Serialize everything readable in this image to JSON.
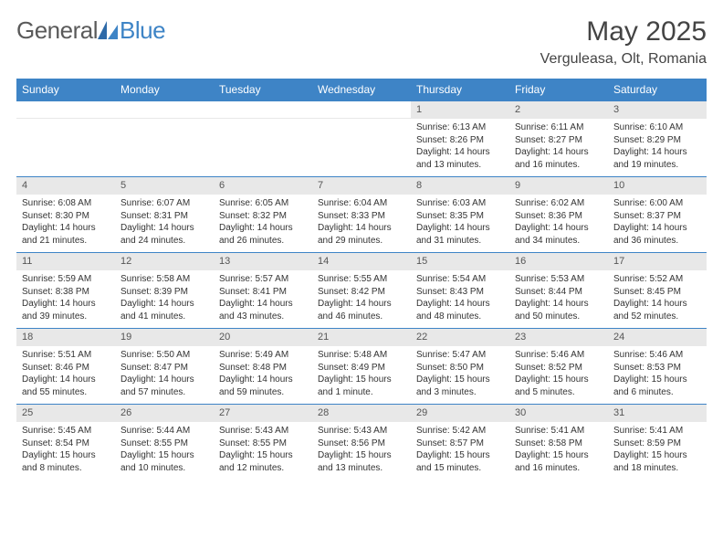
{
  "brand": {
    "part1": "General",
    "part2": "Blue",
    "accent": "#3e84c6",
    "gray": "#5a5a5a"
  },
  "header": {
    "month": "May 2025",
    "location": "Verguleasa, Olt, Romania"
  },
  "colors": {
    "header_bg": "#3e84c6",
    "header_fg": "#ffffff",
    "daynum_bg": "#e8e8e8",
    "rule": "#3e84c6",
    "text": "#333333"
  },
  "weekdays": [
    "Sunday",
    "Monday",
    "Tuesday",
    "Wednesday",
    "Thursday",
    "Friday",
    "Saturday"
  ],
  "weeks": [
    [
      {
        "empty": true
      },
      {
        "empty": true
      },
      {
        "empty": true
      },
      {
        "empty": true
      },
      {
        "n": "1",
        "sunrise": "6:13 AM",
        "sunset": "8:26 PM",
        "day_h": 14,
        "day_m": 13
      },
      {
        "n": "2",
        "sunrise": "6:11 AM",
        "sunset": "8:27 PM",
        "day_h": 14,
        "day_m": 16
      },
      {
        "n": "3",
        "sunrise": "6:10 AM",
        "sunset": "8:29 PM",
        "day_h": 14,
        "day_m": 19
      }
    ],
    [
      {
        "n": "4",
        "sunrise": "6:08 AM",
        "sunset": "8:30 PM",
        "day_h": 14,
        "day_m": 21
      },
      {
        "n": "5",
        "sunrise": "6:07 AM",
        "sunset": "8:31 PM",
        "day_h": 14,
        "day_m": 24
      },
      {
        "n": "6",
        "sunrise": "6:05 AM",
        "sunset": "8:32 PM",
        "day_h": 14,
        "day_m": 26
      },
      {
        "n": "7",
        "sunrise": "6:04 AM",
        "sunset": "8:33 PM",
        "day_h": 14,
        "day_m": 29
      },
      {
        "n": "8",
        "sunrise": "6:03 AM",
        "sunset": "8:35 PM",
        "day_h": 14,
        "day_m": 31
      },
      {
        "n": "9",
        "sunrise": "6:02 AM",
        "sunset": "8:36 PM",
        "day_h": 14,
        "day_m": 34
      },
      {
        "n": "10",
        "sunrise": "6:00 AM",
        "sunset": "8:37 PM",
        "day_h": 14,
        "day_m": 36
      }
    ],
    [
      {
        "n": "11",
        "sunrise": "5:59 AM",
        "sunset": "8:38 PM",
        "day_h": 14,
        "day_m": 39
      },
      {
        "n": "12",
        "sunrise": "5:58 AM",
        "sunset": "8:39 PM",
        "day_h": 14,
        "day_m": 41
      },
      {
        "n": "13",
        "sunrise": "5:57 AM",
        "sunset": "8:41 PM",
        "day_h": 14,
        "day_m": 43
      },
      {
        "n": "14",
        "sunrise": "5:55 AM",
        "sunset": "8:42 PM",
        "day_h": 14,
        "day_m": 46
      },
      {
        "n": "15",
        "sunrise": "5:54 AM",
        "sunset": "8:43 PM",
        "day_h": 14,
        "day_m": 48
      },
      {
        "n": "16",
        "sunrise": "5:53 AM",
        "sunset": "8:44 PM",
        "day_h": 14,
        "day_m": 50
      },
      {
        "n": "17",
        "sunrise": "5:52 AM",
        "sunset": "8:45 PM",
        "day_h": 14,
        "day_m": 52
      }
    ],
    [
      {
        "n": "18",
        "sunrise": "5:51 AM",
        "sunset": "8:46 PM",
        "day_h": 14,
        "day_m": 55
      },
      {
        "n": "19",
        "sunrise": "5:50 AM",
        "sunset": "8:47 PM",
        "day_h": 14,
        "day_m": 57
      },
      {
        "n": "20",
        "sunrise": "5:49 AM",
        "sunset": "8:48 PM",
        "day_h": 14,
        "day_m": 59
      },
      {
        "n": "21",
        "sunrise": "5:48 AM",
        "sunset": "8:49 PM",
        "day_h": 15,
        "day_m": 1
      },
      {
        "n": "22",
        "sunrise": "5:47 AM",
        "sunset": "8:50 PM",
        "day_h": 15,
        "day_m": 3
      },
      {
        "n": "23",
        "sunrise": "5:46 AM",
        "sunset": "8:52 PM",
        "day_h": 15,
        "day_m": 5
      },
      {
        "n": "24",
        "sunrise": "5:46 AM",
        "sunset": "8:53 PM",
        "day_h": 15,
        "day_m": 6
      }
    ],
    [
      {
        "n": "25",
        "sunrise": "5:45 AM",
        "sunset": "8:54 PM",
        "day_h": 15,
        "day_m": 8
      },
      {
        "n": "26",
        "sunrise": "5:44 AM",
        "sunset": "8:55 PM",
        "day_h": 15,
        "day_m": 10
      },
      {
        "n": "27",
        "sunrise": "5:43 AM",
        "sunset": "8:55 PM",
        "day_h": 15,
        "day_m": 12
      },
      {
        "n": "28",
        "sunrise": "5:43 AM",
        "sunset": "8:56 PM",
        "day_h": 15,
        "day_m": 13
      },
      {
        "n": "29",
        "sunrise": "5:42 AM",
        "sunset": "8:57 PM",
        "day_h": 15,
        "day_m": 15
      },
      {
        "n": "30",
        "sunrise": "5:41 AM",
        "sunset": "8:58 PM",
        "day_h": 15,
        "day_m": 16
      },
      {
        "n": "31",
        "sunrise": "5:41 AM",
        "sunset": "8:59 PM",
        "day_h": 15,
        "day_m": 18
      }
    ]
  ]
}
